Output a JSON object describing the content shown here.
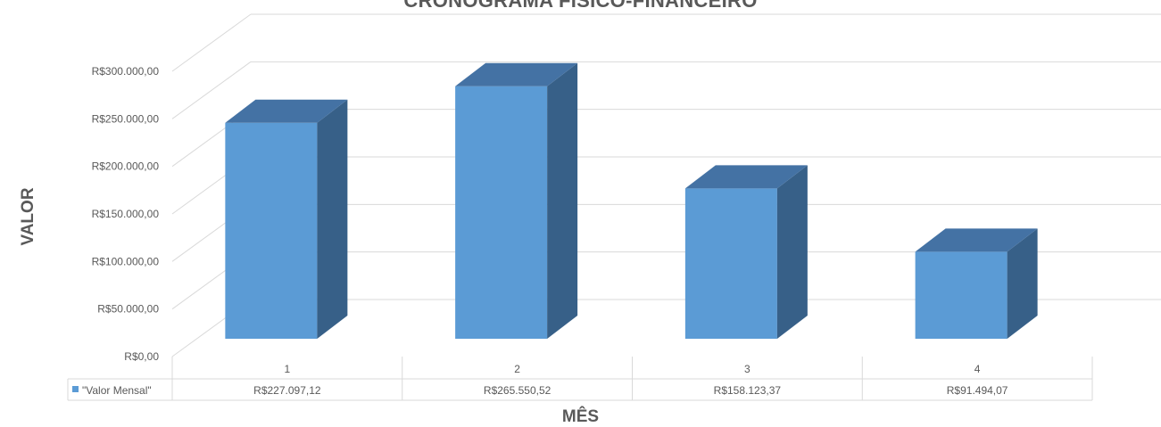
{
  "chart_data": {
    "type": "bar",
    "title": "CRONOGRAMA FÍSICO-FINANCEIRO",
    "xlabel": "MÊS",
    "ylabel": "VALOR",
    "categories": [
      "1",
      "2",
      "3",
      "4"
    ],
    "series": [
      {
        "name": "\"Valor Mensal\"",
        "values": [
          227097.12,
          265550.52,
          158123.37,
          91494.07
        ],
        "value_labels": [
          "R$227.097,12",
          "R$265.550,52",
          "R$158.123,37",
          "R$91.494,07"
        ],
        "color": "#5b9bd5"
      }
    ],
    "ylim": [
      0,
      300000
    ],
    "yticks": [
      0,
      50000,
      100000,
      150000,
      200000,
      250000,
      300000
    ],
    "ytick_labels": [
      "R$0,00",
      "R$50.000,00",
      "R$100.000,00",
      "R$150.000,00",
      "R$200.000,00",
      "R$250.000,00",
      "R$300.000,00"
    ],
    "grid": true,
    "style": "3d-column",
    "data_table": true
  }
}
